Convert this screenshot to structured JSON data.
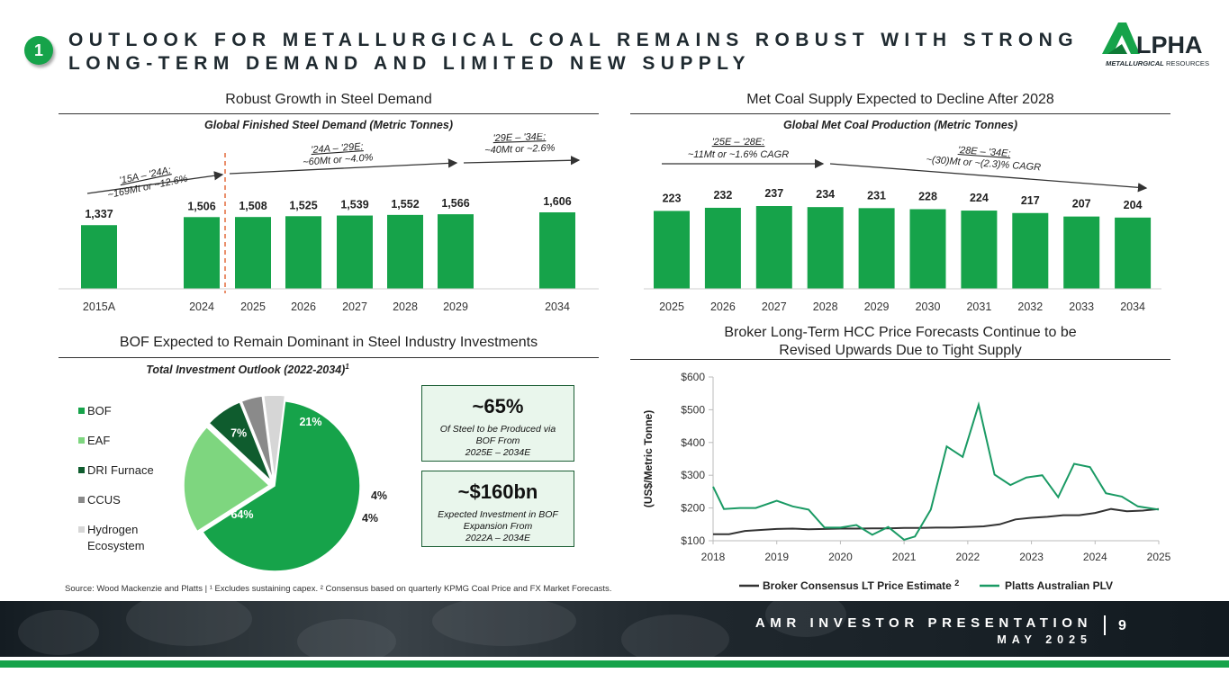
{
  "header": {
    "badge": "1",
    "title_line1": "OUTLOOK FOR METALLURGICAL COAL REMAINS ROBUST WITH STRONG",
    "title_line2": "LONG-TERM DEMAND AND LIMITED NEW SUPPLY",
    "logo_word": "LPHA",
    "logo_sub_bold": "METALLURGICAL",
    "logo_sub_rest": " RESOURCES",
    "logo_color": "#16a34a"
  },
  "colors": {
    "accent_green": "#16a34a",
    "dark_text": "#1f2a30",
    "callout_bg": "#e9f6ec"
  },
  "steel": {
    "section_title": "Robust Growth in Steel Demand",
    "subtitle": "Global Finished Steel Demand (Metric Tonnes)",
    "annotations": [
      {
        "line1": "'15A – '24A:",
        "line2": "~169Mt or ~12.6%"
      },
      {
        "line1": "'24A – '29E:",
        "line2": "~60Mt or ~4.0%"
      },
      {
        "line1": "'29E – '34E:",
        "line2": "~40Mt or ~2.6%"
      }
    ]
  },
  "supply": {
    "section_title": "Met Coal Supply Expected to Decline After 2028",
    "subtitle": "Global Met Coal Production (Metric Tonnes)",
    "annotations": [
      {
        "line1": "'25E – '28E:",
        "line2": "~11Mt or ~1.6% CAGR"
      },
      {
        "line1": "'28E – '34E:",
        "line2": "~(30)Mt or ~(2.3)% CAGR"
      }
    ]
  },
  "bof": {
    "section_title": "BOF Expected to Remain Dominant in Steel Industry Investments",
    "subtitle": "Total Investment Outlook (2022-2034)",
    "subtitle_sup": "1",
    "callouts": [
      {
        "big": "~65%",
        "small_lines": [
          "Of Steel to be Produced via",
          "BOF From",
          "2025E – 2034E"
        ]
      },
      {
        "big": "~$160bn",
        "small_lines": [
          "Expected Investment in BOF",
          "Expansion From",
          "2022A – 2034E"
        ]
      }
    ]
  },
  "price": {
    "section_title_line1": "Broker Long-Term HCC Price Forecasts Continue to be",
    "section_title_line2": "Revised Upwards Due to Tight Supply"
  },
  "chart_data": [
    {
      "type": "bar",
      "name": "Global Finished Steel Demand (Metric Tonnes)",
      "categories": [
        "2015A",
        "2024",
        "2025",
        "2026",
        "2027",
        "2028",
        "2029",
        "2034"
      ],
      "values": [
        1337,
        1506,
        1508,
        1525,
        1539,
        1552,
        1566,
        1606
      ],
      "value_labels": [
        "1,337",
        "1,506",
        "1,508",
        "1,525",
        "1,539",
        "1,552",
        "1,566",
        "1,606"
      ],
      "color": "#16a34a"
    },
    {
      "type": "bar",
      "name": "Global Met Coal Production (Metric Tonnes)",
      "categories": [
        "2025",
        "2026",
        "2027",
        "2028",
        "2029",
        "2030",
        "2031",
        "2032",
        "2033",
        "2034"
      ],
      "values": [
        223,
        232,
        237,
        234,
        231,
        228,
        224,
        217,
        207,
        204
      ],
      "value_labels": [
        "223",
        "232",
        "237",
        "234",
        "231",
        "228",
        "224",
        "217",
        "207",
        "204"
      ],
      "color": "#16a34a"
    },
    {
      "type": "pie",
      "name": "Total Investment Outlook (2022-2034)",
      "slices": [
        {
          "label": "BOF",
          "value": 64,
          "display": "64%",
          "color": "#16a34a"
        },
        {
          "label": "EAF",
          "value": 21,
          "display": "21%",
          "color": "#7ed67f"
        },
        {
          "label": "DRI Furnace",
          "value": 7,
          "display": "7%",
          "color": "#0f5c2e"
        },
        {
          "label": "CCUS",
          "value": 4,
          "display": "4%",
          "color": "#8a8a8a"
        },
        {
          "label": "Hydrogen Ecosystem",
          "value": 4,
          "display": "4%",
          "color": "#d6d6d6"
        }
      ],
      "legend_position": "left"
    },
    {
      "type": "line",
      "name": "Broker Long-Term HCC Price Forecasts",
      "ylabel": "(US$/Metric Tonne)",
      "ylim": [
        100,
        600
      ],
      "yticks": [
        100,
        200,
        300,
        400,
        500,
        600
      ],
      "ytick_labels": [
        "$100",
        "$200",
        "$300",
        "$400",
        "$500",
        "$600"
      ],
      "xlim": [
        2018,
        2025
      ],
      "xticks": [
        2018,
        2019,
        2020,
        2021,
        2022,
        2023,
        2024,
        2025
      ],
      "xtick_labels": [
        "2018",
        "2019",
        "2020",
        "2021",
        "2022",
        "2023",
        "2024",
        "2025"
      ],
      "legend_position": "bottom",
      "series": [
        {
          "name": "Broker Consensus LT Price Estimate",
          "name_sup": "2",
          "color": "#333333",
          "x": [
            2018,
            2018.25,
            2018.5,
            2018.75,
            2019,
            2019.25,
            2019.5,
            2019.75,
            2020,
            2020.25,
            2020.5,
            2020.75,
            2021,
            2021.25,
            2021.5,
            2021.75,
            2022,
            2022.25,
            2022.5,
            2022.75,
            2023,
            2023.25,
            2023.5,
            2023.75,
            2024,
            2024.25,
            2024.5,
            2024.75,
            2025
          ],
          "y": [
            120,
            120,
            130,
            133,
            136,
            137,
            135,
            136,
            137,
            137,
            138,
            138,
            139,
            139,
            140,
            140,
            142,
            144,
            150,
            165,
            170,
            173,
            178,
            178,
            185,
            197,
            190,
            192,
            197
          ]
        },
        {
          "name": "Platts Australian PLV",
          "color": "#1a9a64",
          "x": [
            2018,
            2018.17,
            2018.42,
            2018.67,
            2019,
            2019.25,
            2019.5,
            2019.75,
            2020,
            2020.25,
            2020.5,
            2020.75,
            2021,
            2021.17,
            2021.42,
            2021.67,
            2021.92,
            2022.17,
            2022.42,
            2022.67,
            2022.92,
            2023.17,
            2023.42,
            2023.67,
            2023.92,
            2024.17,
            2024.42,
            2024.67,
            2025
          ],
          "y": [
            265,
            197,
            200,
            200,
            222,
            205,
            195,
            140,
            140,
            148,
            118,
            142,
            103,
            113,
            195,
            388,
            356,
            515,
            302,
            270,
            293,
            300,
            233,
            335,
            325,
            245,
            235,
            205,
            195
          ]
        }
      ]
    }
  ],
  "footer": {
    "source_text": "Source: Wood Mackenzie and Platts | ¹ Excludes sustaining capex. ² Consensus based on quarterly KPMG Coal Price and FX Market Forecasts.",
    "title": "AMR INVESTOR PRESENTATION",
    "date": "MAY 2025",
    "page": "9"
  }
}
